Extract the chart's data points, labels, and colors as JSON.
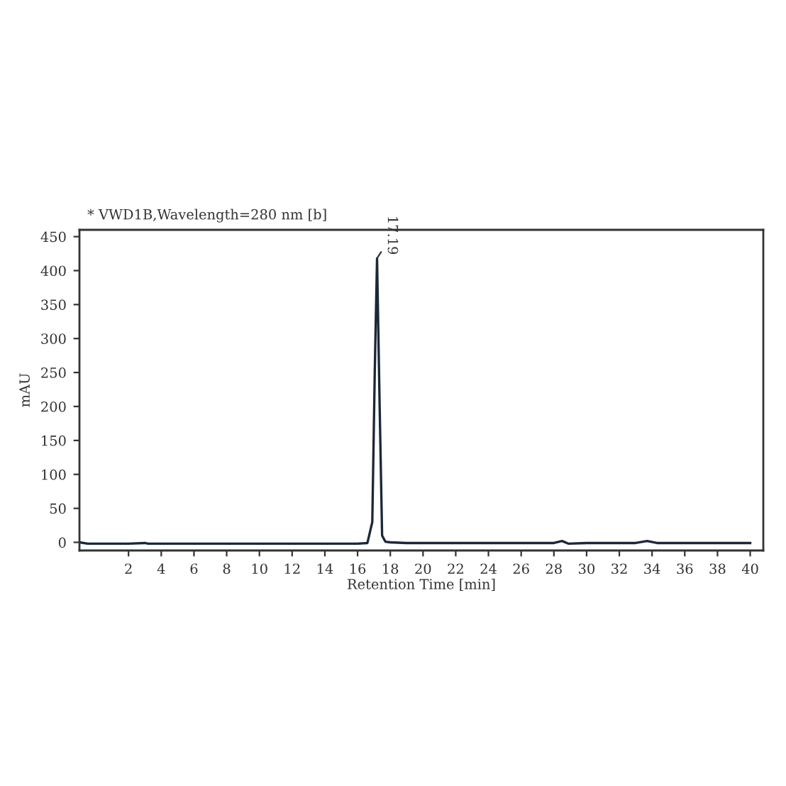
{
  "chart_data": {
    "type": "line",
    "title": "* VWD1B,Wavelength=280 nm [b]",
    "xlabel": "Retention Time [min]",
    "ylabel": "mAU",
    "series": [
      {
        "color": "#1c2838",
        "x": [
          -1,
          -0.5,
          0,
          1,
          2,
          3,
          3.2,
          4,
          6,
          8,
          10,
          12,
          14,
          16,
          16.6,
          16.9,
          17.05,
          17.19,
          17.35,
          17.5,
          17.7,
          18,
          19,
          20,
          22,
          24,
          26,
          28,
          28.5,
          28.9,
          30,
          32,
          33,
          33.7,
          34.3,
          36,
          38,
          40
        ],
        "values": [
          0,
          -2,
          -2,
          -2,
          -2,
          -1,
          -2,
          -2,
          -2,
          -2,
          -2,
          -2,
          -2,
          -2,
          -1,
          30,
          250,
          418,
          200,
          10,
          1,
          0,
          -1,
          -1,
          -1,
          -1,
          -1,
          -1,
          2,
          -2,
          -1,
          -1,
          -1,
          2,
          -1,
          -1,
          -1,
          -1
        ]
      }
    ],
    "annotations": [
      {
        "text": "17.19",
        "x": 17.19,
        "y": 418
      }
    ],
    "xlim": [
      -1,
      40.8
    ],
    "ylim": [
      -12,
      460
    ],
    "xticks": [
      2,
      4,
      6,
      8,
      10,
      12,
      14,
      16,
      18,
      20,
      22,
      24,
      26,
      28,
      30,
      32,
      34,
      36,
      38,
      40
    ],
    "yticks": [
      0,
      50,
      100,
      150,
      200,
      250,
      300,
      350,
      400,
      450
    ],
    "grid": false,
    "legend": false,
    "marker": "none",
    "line_style": "solid"
  }
}
